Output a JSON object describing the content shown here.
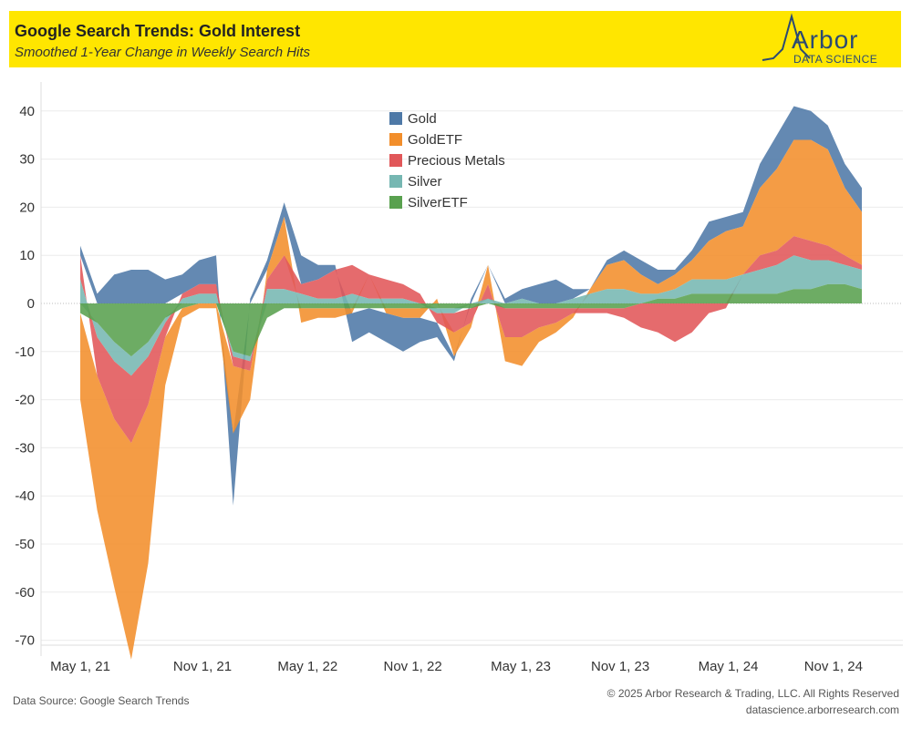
{
  "header": {
    "title": "Google Search Trends: Gold Interest",
    "subtitle": "Smoothed 1-Year Change in Weekly Search Hits",
    "logo_word": "Arbor",
    "logo_sub": "DATA SCIENCE",
    "background": "#ffe600"
  },
  "footer": {
    "source": "Data Source: Google Search Trends",
    "copyright": "© 2025 Arbor Research & Trading, LLC. All Rights Reserved",
    "website": "datascience.arborresearch.com"
  },
  "chart_data": {
    "type": "area",
    "stacking": "diverging",
    "title": "Google Search Trends: Gold Interest",
    "subtitle": "Smoothed 1-Year Change in Weekly Search Hits",
    "xlabel": "",
    "ylabel": "",
    "x_ticks": [
      "May 1, 21",
      "Nov 1, 21",
      "May 1, 22",
      "Nov 1, 22",
      "May 1, 23",
      "Nov 1, 23",
      "May 1, 24",
      "Nov 1, 24"
    ],
    "x_tick_index": [
      0,
      4.3,
      8.0,
      11.7,
      15.5,
      19.0,
      22.8,
      26.5
    ],
    "y_ticks": [
      40,
      30,
      20,
      10,
      0,
      -10,
      -20,
      -30,
      -40,
      -50,
      -60,
      -70
    ],
    "ylim": [
      -72,
      44
    ],
    "grid": true,
    "legend_position": "top-center",
    "x": [
      "2021-04",
      "2021-05",
      "2021-06",
      "2021-07",
      "2021-08",
      "2021-09",
      "2021-10",
      "2021-11",
      "2021-12",
      "2022-01",
      "2022-02",
      "2022-03",
      "2022-04",
      "2022-05",
      "2022-06",
      "2022-07",
      "2022-08",
      "2022-09",
      "2022-10",
      "2022-11",
      "2022-12",
      "2023-01",
      "2023-02",
      "2023-03",
      "2023-04",
      "2023-05",
      "2023-06",
      "2023-07",
      "2023-08",
      "2023-09",
      "2023-10",
      "2023-11",
      "2023-12",
      "2024-01",
      "2024-02",
      "2024-03",
      "2024-04",
      "2024-05",
      "2024-06",
      "2024-07",
      "2024-08",
      "2024-09",
      "2024-10",
      "2024-11",
      "2024-12",
      "2025-01",
      "2025-02"
    ],
    "series": [
      {
        "name": "Gold",
        "color": "#4e79a7",
        "values": [
          2,
          2,
          6,
          7,
          7,
          5,
          4,
          5,
          6,
          -15,
          1,
          2,
          3,
          6,
          3,
          1,
          -6,
          -5,
          -6,
          -7,
          -5,
          -3,
          -1,
          1,
          0,
          1,
          2,
          4,
          5,
          2,
          0,
          1,
          2,
          3,
          3,
          1,
          2,
          4,
          3,
          3,
          5,
          7,
          7,
          6,
          5,
          5,
          5
        ]
      },
      {
        "name": "GoldETF",
        "color": "#f28e2b",
        "values": [
          -18,
          -28,
          -35,
          -45,
          -33,
          -10,
          -2,
          -1,
          -1,
          -14,
          -6,
          2,
          8,
          -3,
          -2,
          -2,
          -1,
          0,
          -1,
          -2,
          -2,
          1,
          -5,
          -1,
          4,
          -5,
          -6,
          -3,
          -2,
          -1,
          1,
          5,
          6,
          4,
          2,
          3,
          4,
          8,
          10,
          10,
          14,
          17,
          20,
          21,
          20,
          14,
          11
        ]
      },
      {
        "name": "Precious Metals",
        "color": "#e15759",
        "values": [
          5,
          -8,
          -12,
          -14,
          -10,
          -3,
          1,
          2,
          2,
          -2,
          -2,
          2,
          7,
          2,
          4,
          6,
          6,
          5,
          4,
          3,
          2,
          -2,
          -4,
          -3,
          3,
          -6,
          -6,
          -4,
          -3,
          -1,
          -1,
          -1,
          -2,
          -5,
          -6,
          -8,
          -6,
          -2,
          -1,
          0,
          3,
          3,
          4,
          4,
          3,
          2,
          1
        ]
      },
      {
        "name": "Silver",
        "color": "#76b7b2",
        "values": [
          5,
          -3,
          -4,
          -4,
          -3,
          -1,
          1,
          2,
          2,
          -1,
          -1,
          3,
          3,
          2,
          1,
          1,
          2,
          1,
          1,
          1,
          0,
          -1,
          -1,
          0,
          1,
          0,
          1,
          0,
          0,
          1,
          2,
          3,
          3,
          2,
          1,
          2,
          3,
          3,
          3,
          4,
          5,
          6,
          7,
          6,
          5,
          4,
          4
        ]
      },
      {
        "name": "SilverETF",
        "color": "#59a14f",
        "values": [
          -2,
          -4,
          -8,
          -11,
          -8,
          -3,
          -1,
          0,
          0,
          -10,
          -11,
          -3,
          -1,
          -1,
          -1,
          -1,
          -1,
          -1,
          -1,
          -1,
          -1,
          -1,
          -1,
          -1,
          0,
          -1,
          -1,
          -1,
          -1,
          -1,
          -1,
          -1,
          -1,
          0,
          1,
          1,
          2,
          2,
          2,
          2,
          2,
          2,
          3,
          3,
          4,
          4,
          3
        ]
      }
    ]
  }
}
